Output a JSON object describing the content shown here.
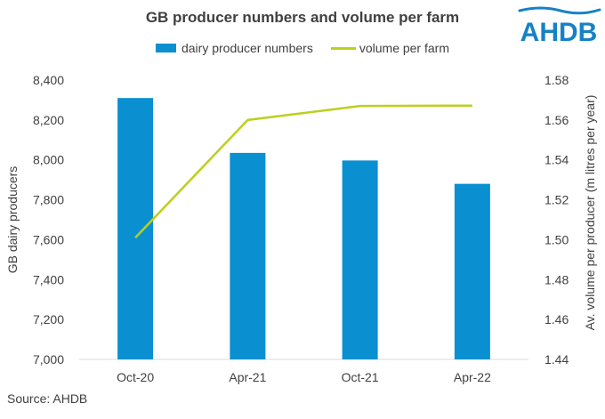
{
  "title": "GB producer numbers and volume per farm",
  "logo_text": "AHDB",
  "source": "Source: AHDB",
  "colors": {
    "bar": "#0a8fd1",
    "line": "#bccf1c",
    "logo": "#1582c5",
    "axis": "#d9d9d9"
  },
  "chart_data": {
    "type": "bar",
    "categories": [
      "Oct-20",
      "Apr-21",
      "Oct-21",
      "Apr-22"
    ],
    "series": [
      {
        "name": "dairy producer numbers",
        "type": "bar",
        "axis": "left",
        "values": [
          8310,
          8035,
          7997,
          7880
        ]
      },
      {
        "name": "volume per farm",
        "type": "line",
        "axis": "right",
        "values": [
          1.501,
          1.56,
          1.567,
          1.5672
        ]
      }
    ],
    "ylabel": "GB dairy producers",
    "y2label": "Av. volume per producer (m litres per year)",
    "ylim": [
      7000,
      8400
    ],
    "y2lim": [
      1.44,
      1.58
    ],
    "yticks": [
      "7,000",
      "7,200",
      "7,400",
      "7,600",
      "7,800",
      "8,000",
      "8,200",
      "8,400"
    ],
    "y2ticks": [
      "1.44",
      "1.46",
      "1.48",
      "1.50",
      "1.52",
      "1.54",
      "1.56",
      "1.58"
    ],
    "grid": false,
    "legend_position": "top"
  }
}
